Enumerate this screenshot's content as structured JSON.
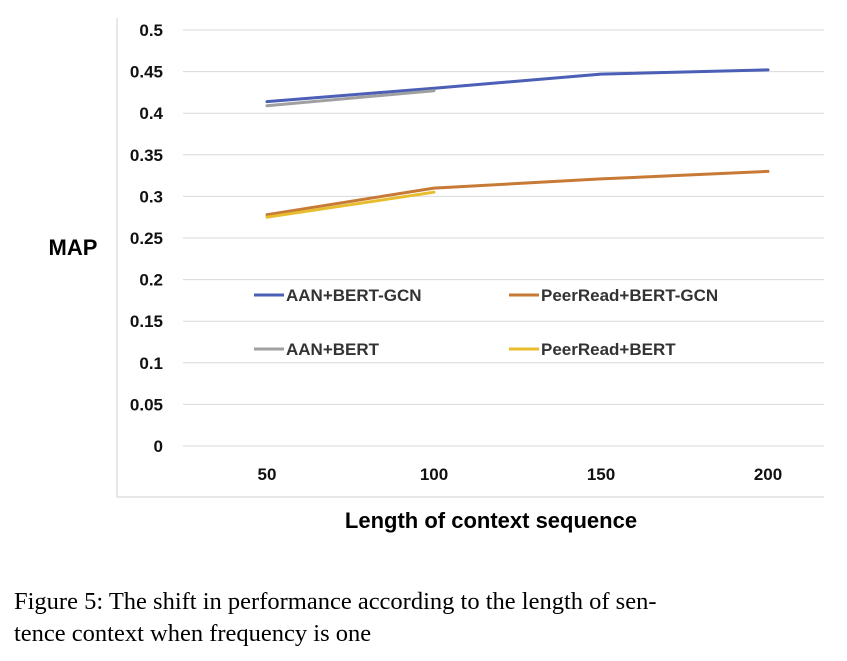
{
  "caption": {
    "line1": "Figure 5: The shift in performance according to the length of sen-",
    "line2": "tence context when frequency is one"
  },
  "chart_data": {
    "type": "line",
    "title": "",
    "xlabel": "Length of context sequence",
    "ylabel": "MAP",
    "categories": [
      "50",
      "100",
      "150",
      "200"
    ],
    "yticks": [
      "0",
      "0.05",
      "0.1",
      "0.15",
      "0.2",
      "0.25",
      "0.3",
      "0.35",
      "0.4",
      "0.45",
      "0.5"
    ],
    "ylim": [
      0,
      0.5
    ],
    "grid": true,
    "legend_position": "inside, lower middle",
    "series": [
      {
        "name": "AAN+BERT-GCN",
        "color": "#4a5fb5",
        "x": [
          "50",
          "100",
          "150",
          "200"
        ],
        "values": [
          0.414,
          0.43,
          0.447,
          0.452
        ]
      },
      {
        "name": "PeerRead+BERT-GCN",
        "color": "#c77a35",
        "x": [
          "50",
          "100",
          "150",
          "200"
        ],
        "values": [
          0.278,
          0.31,
          0.321,
          0.33
        ]
      },
      {
        "name": "AAN+BERT",
        "color": "#a0a0a0",
        "x": [
          "50",
          "100"
        ],
        "values": [
          0.409,
          0.427
        ]
      },
      {
        "name": "PeerRead+BERT",
        "color": "#e8bd2d",
        "x": [
          "50",
          "100"
        ],
        "values": [
          0.275,
          0.305
        ]
      }
    ]
  }
}
